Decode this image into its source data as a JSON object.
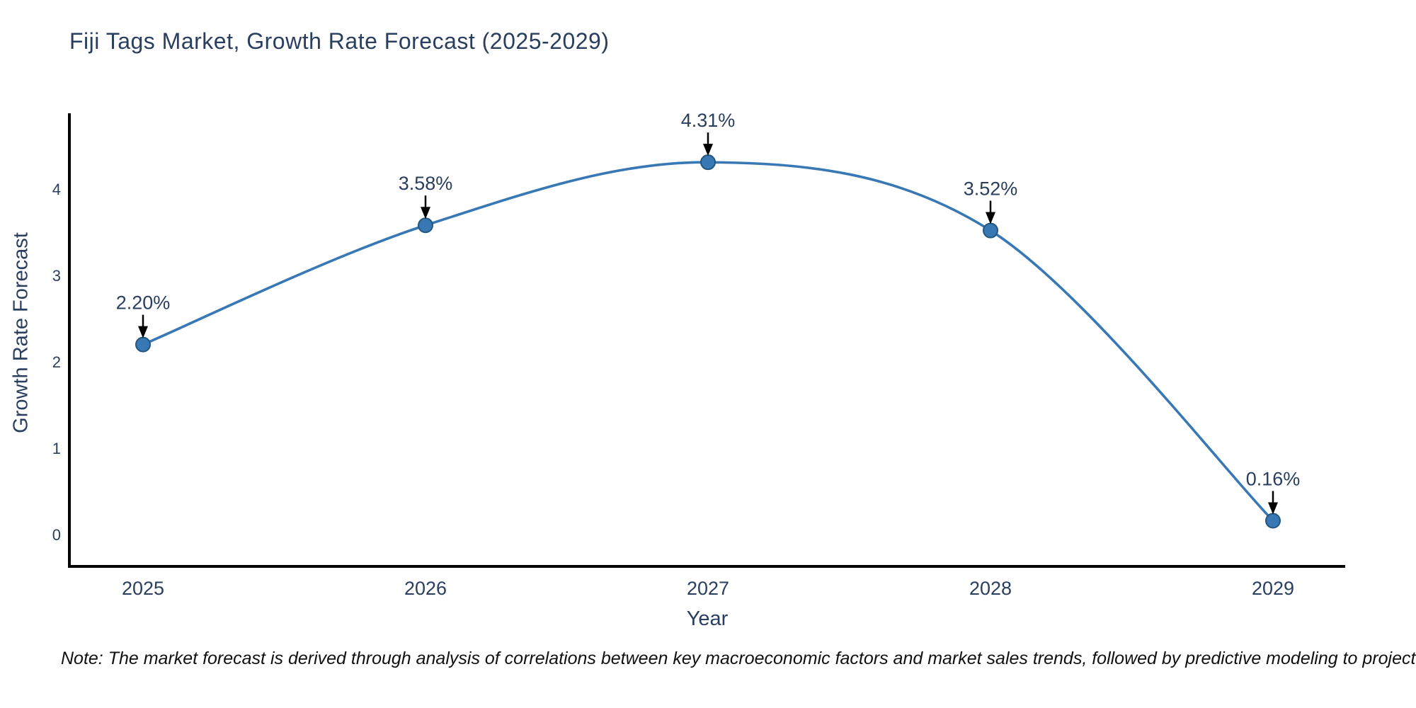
{
  "chart_data": {
    "type": "line",
    "title": "Fiji Tags Market, Growth Rate Forecast (2025-2029)",
    "xlabel": "Year",
    "ylabel": "Growth Rate Forecast",
    "categories": [
      "2025",
      "2026",
      "2027",
      "2028",
      "2029"
    ],
    "series": [
      {
        "name": "Growth Rate Forecast",
        "values": [
          2.2,
          3.58,
          4.31,
          3.52,
          0.16
        ]
      }
    ],
    "point_labels": [
      "2.20%",
      "3.58%",
      "4.31%",
      "3.52%",
      "0.16%"
    ],
    "yticks": [
      0,
      1,
      2,
      3,
      4
    ],
    "ylim": [
      -0.37,
      4.9
    ],
    "line_shape": "spline",
    "grid": false,
    "legend": "none",
    "annotations": "down-arrow-to-each-point",
    "colors": {
      "line": "#3878b4",
      "marker": "#3878b4",
      "marker_edge": "#24567e",
      "axis": "#000000",
      "tick_text": "#2a3f5f",
      "annotation_text": "#2a3f5f",
      "arrow": "#000000",
      "title": "#2a3f5f"
    }
  },
  "note": {
    "text": "Note: The market forecast is derived through analysis of correlations between key macroeconomic factors and market sales trends, followed by predictive modeling to project future sales."
  }
}
